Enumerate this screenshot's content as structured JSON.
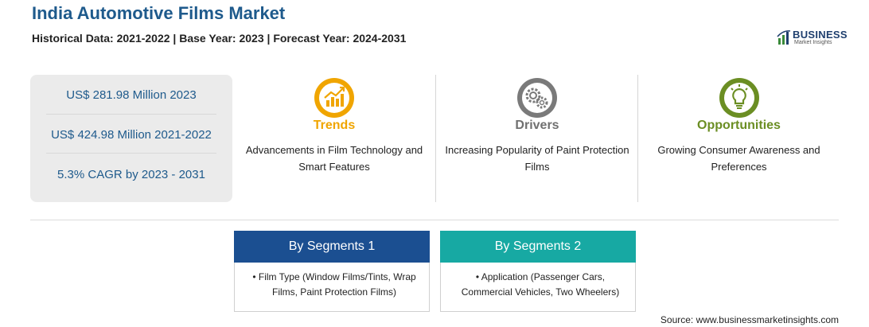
{
  "header": {
    "title": "India Automotive Films Market",
    "subtitle": "Historical Data: 2021-2022 | Base Year: 2023 | Forecast Year: 2024-2031"
  },
  "logo": {
    "line1": "BUSINESS",
    "line2": "Market Insights"
  },
  "stats": [
    "US$ 281.98 Million 2023",
    "US$ 424.98 Million 2021-2022",
    "5.3% CAGR by 2023 - 2031"
  ],
  "columns": [
    {
      "heading": "Trends",
      "color": "#f0a500",
      "icon": "chart-up-icon",
      "text": "Advancements in Film Technology and Smart Features"
    },
    {
      "heading": "Drivers",
      "color": "#707070",
      "icon": "gears-icon",
      "text": "Increasing Popularity of Paint Protection Films"
    },
    {
      "heading": "Opportunities",
      "color": "#6b8e23",
      "icon": "lightbulb-icon",
      "text": "Growing Consumer Awareness and Preferences"
    }
  ],
  "segments": [
    {
      "title": "By Segments 1",
      "color": "#1b4f91",
      "item": "Film Type (Window Films/Tints, Wrap Films, Paint Protection Films)"
    },
    {
      "title": "By Segments 2",
      "color": "#17a9a3",
      "item": "Application (Passenger Cars, Commercial Vehicles, Two Wheelers)"
    }
  ],
  "source": "Source: www.businessmarketinsights.com"
}
